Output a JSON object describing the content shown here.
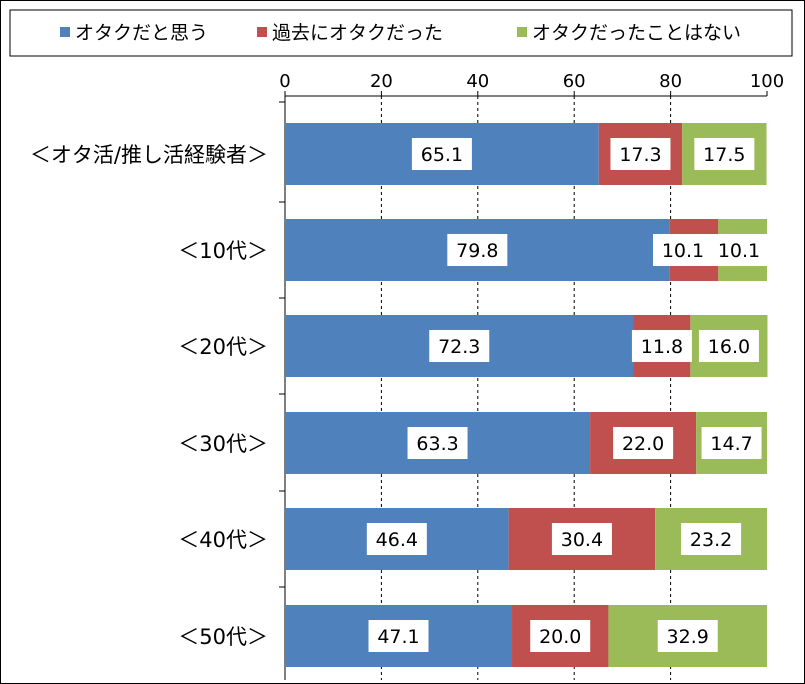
{
  "chart_data": {
    "type": "bar",
    "orientation": "horizontal",
    "stacked": true,
    "categories": [
      "＜オタ活/推し活経験者＞",
      "＜10代＞",
      "＜20代＞",
      "＜30代＞",
      "＜40代＞",
      "＜50代＞"
    ],
    "series": [
      {
        "name": "オタクだと思う",
        "color": "#4f81bd",
        "values": [
          65.1,
          79.8,
          72.3,
          63.3,
          46.4,
          47.1
        ]
      },
      {
        "name": "過去にオタクだった",
        "color": "#c0504d",
        "values": [
          17.3,
          10.1,
          11.8,
          22.0,
          30.4,
          20.0
        ]
      },
      {
        "name": "オタクだったことはない",
        "color": "#9bbb59",
        "values": [
          17.5,
          10.1,
          16.0,
          14.7,
          23.2,
          32.9
        ]
      }
    ],
    "xlim": [
      0,
      100
    ],
    "xticks": [
      0,
      20,
      40,
      60,
      80,
      100
    ],
    "grid": "vertical dashed",
    "legend": "top",
    "data_labels": true
  }
}
